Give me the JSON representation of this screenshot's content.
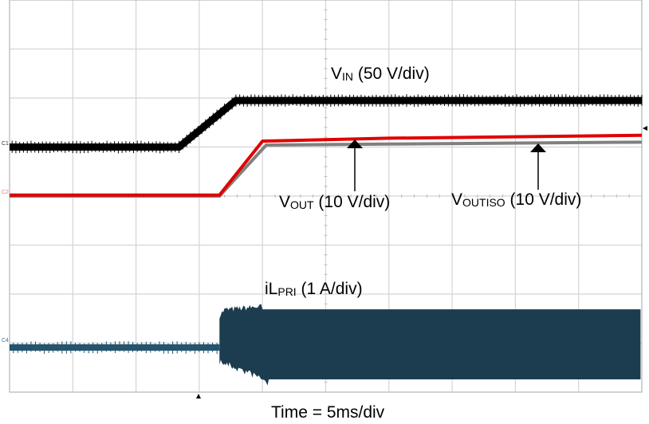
{
  "chart_data": {
    "type": "line",
    "title": "",
    "xlabel": "Time = 5ms/div",
    "x_units": "ms",
    "xlim": [
      0,
      50
    ],
    "y_units": "div",
    "ylim": [
      0,
      8
    ],
    "grid": true,
    "series": [
      {
        "name": "VIN",
        "label_main": "V",
        "label_sub": "IN",
        "label_scale": " (50 V/div)",
        "channel": "C1",
        "color": "#000000",
        "points": [
          [
            0,
            5.0
          ],
          [
            13.4,
            5.0
          ],
          [
            17.9,
            5.95
          ],
          [
            50,
            5.95
          ]
        ]
      },
      {
        "name": "VOUT",
        "label_main": "V",
        "label_sub": "OUT",
        "label_scale": " (10 V/div)",
        "channel": "C2",
        "color": "#e00000",
        "points": [
          [
            0,
            4.02
          ],
          [
            16.6,
            4.02
          ],
          [
            20.0,
            5.12
          ],
          [
            30,
            5.18
          ],
          [
            50,
            5.24
          ]
        ]
      },
      {
        "name": "VOUTISO",
        "label_main": "V",
        "label_sub": "OUTISO",
        "label_scale": " (10 V/div)",
        "color": "#808080",
        "points": [
          [
            0,
            4.0
          ],
          [
            16.6,
            4.0
          ],
          [
            20.3,
            5.04
          ],
          [
            30,
            5.06
          ],
          [
            50,
            5.1
          ]
        ]
      },
      {
        "name": "iLPRI",
        "label_main": "iL",
        "label_sub": "PRI",
        "label_scale": " (1 A/div)",
        "channel": "C4",
        "color": "#1c3d50",
        "baseline": 0.91,
        "envelope_top": [
          [
            16.6,
            1.5
          ],
          [
            17.0,
            1.62
          ],
          [
            20,
            1.69
          ],
          [
            50,
            1.69
          ]
        ],
        "envelope_bottom": [
          [
            16.6,
            0.7
          ],
          [
            20.0,
            0.35
          ],
          [
            20.5,
            0.26
          ],
          [
            50,
            0.26
          ]
        ]
      }
    ],
    "channel_markers": [
      "C1",
      "C2",
      "C4"
    ]
  }
}
